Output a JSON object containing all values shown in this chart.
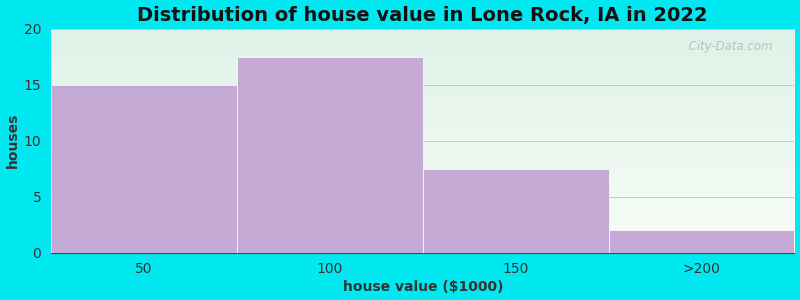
{
  "title": "Distribution of house value in Lone Rock, IA in 2022",
  "xlabel": "house value ($1000)",
  "ylabel": "houses",
  "categories": [
    "50",
    "100",
    "150",
    ">200"
  ],
  "values": [
    15,
    17.5,
    7.5,
    2
  ],
  "bar_color": "#c4aad4",
  "ylim": [
    0,
    20
  ],
  "yticks": [
    0,
    5,
    10,
    15,
    20
  ],
  "background_color": "#00e8f0",
  "plot_bg_top": "#dff2e8",
  "plot_bg_bottom": "#f8fdf8",
  "grid_color": "#e8b0b0",
  "title_fontsize": 14,
  "axis_fontsize": 10,
  "tick_fontsize": 10,
  "watermark": "  City-Data.com"
}
